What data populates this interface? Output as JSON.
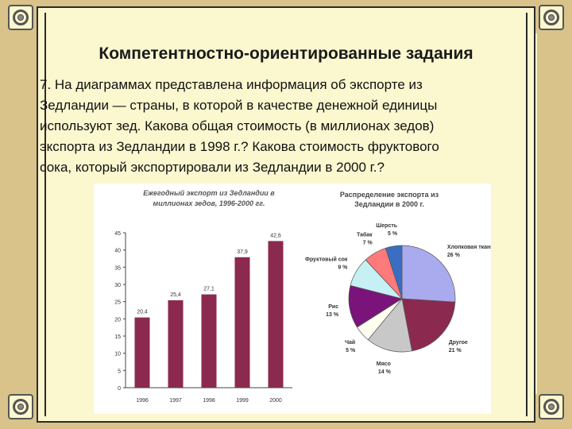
{
  "slide": {
    "title": "Компетентностно-ориентированные задания",
    "task_lines": [
      "7. На диаграммах представлена информация об экспорте из",
      "Зедландии — страны, в которой в качестве денежной единицы",
      "используют зед. Какова общая стоимость (в миллионах зедов)",
      "экспорта из Зедландии в 1998 г.? Какова стоимость фруктового",
      "сока, который экспортировали из Зедландии в 2000 г.?"
    ]
  },
  "colors": {
    "bar": "#8b2a4e",
    "background": "#fbf7cf",
    "strip": "#d9c38a"
  },
  "chart_data": [
    {
      "type": "bar",
      "title_lines": [
        "Ежегодный экспорт из Зедландии в",
        "миллионах зедов, 1996-2000 гг."
      ],
      "categories": [
        "1996",
        "1997",
        "1998",
        "1999",
        "2000"
      ],
      "values": [
        20.4,
        25.4,
        27.1,
        37.9,
        42.6
      ],
      "value_labels": [
        "20,4",
        "25,4",
        "27,1",
        "37,9",
        "42,6"
      ],
      "ylim": [
        0,
        45
      ],
      "yticks": [
        "0",
        "5",
        "10",
        "15",
        "20",
        "25",
        "30",
        "35",
        "40",
        "45"
      ],
      "grid": false
    },
    {
      "type": "pie",
      "title_lines": [
        "Распределение экспорта из",
        "Зедландии в 2000 г."
      ],
      "slices": [
        {
          "label": "Хлопковая ткань",
          "percent_label": "26 %",
          "value": 26,
          "color": "#aaaaee"
        },
        {
          "label": "Другое",
          "percent_label": "21 %",
          "value": 21,
          "color": "#8b2a4e"
        },
        {
          "label": "Мясо",
          "percent_label": "14 %",
          "value": 14,
          "color": "#c8c8c8"
        },
        {
          "label": "Чай",
          "percent_label": "5 %",
          "value": 5,
          "color": "#fffff0"
        },
        {
          "label": "Рис",
          "percent_label": "13 %",
          "value": 13,
          "color": "#7a147a"
        },
        {
          "label": "Фруктовый сок",
          "percent_label": "9 %",
          "value": 9,
          "color": "#c6f0f4"
        },
        {
          "label": "Табак",
          "percent_label": "7 %",
          "value": 7,
          "color": "#ff7a7a"
        },
        {
          "label": "Шерсть",
          "percent_label": "5 %",
          "value": 5,
          "color": "#3a6ec2"
        }
      ]
    }
  ]
}
